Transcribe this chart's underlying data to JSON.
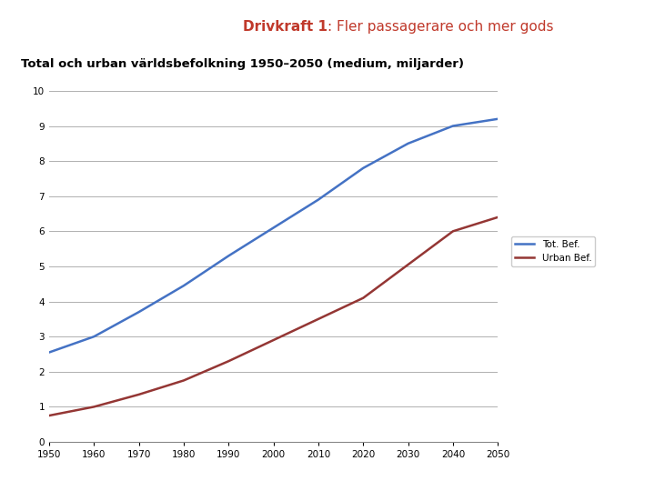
{
  "title_bold": "Drivkraft 1",
  "title_bold_color": "#C0392B",
  "title_rest": ": Fler passagerare och mer gods",
  "title_rest_color": "#C0392B",
  "subtitle": "Total och urban världsbefolkning 1950–2050 (medium, miljarder)",
  "subtitle_color": "#000000",
  "subtitle_bg": "#d6e4f0",
  "years": [
    1950,
    1960,
    1970,
    1980,
    1990,
    2000,
    2010,
    2020,
    2030,
    2040,
    2050
  ],
  "tot_bef": [
    2.55,
    3.0,
    3.7,
    4.45,
    5.3,
    6.1,
    6.9,
    7.8,
    8.5,
    9.0,
    9.2
  ],
  "urban_bef": [
    0.75,
    1.0,
    1.35,
    1.75,
    2.3,
    2.9,
    3.5,
    4.1,
    5.05,
    6.0,
    6.4
  ],
  "tot_color": "#4472C4",
  "urban_color": "#943634",
  "legend_tot": "Tot. Bef.",
  "legend_urban": "Urban Bef.",
  "ylim": [
    0,
    10
  ],
  "yticks": [
    0,
    1,
    2,
    3,
    4,
    5,
    6,
    7,
    8,
    9,
    10
  ],
  "xlim": [
    1950,
    2050
  ],
  "xticks": [
    1950,
    1960,
    1970,
    1980,
    1990,
    2000,
    2010,
    2020,
    2030,
    2040,
    2050
  ],
  "bg_color": "#ffffff",
  "plot_bg": "#ffffff",
  "grid_color": "#b0b0b0",
  "line_width": 1.8,
  "title_fontsize": 11,
  "subtitle_fontsize": 9.5
}
